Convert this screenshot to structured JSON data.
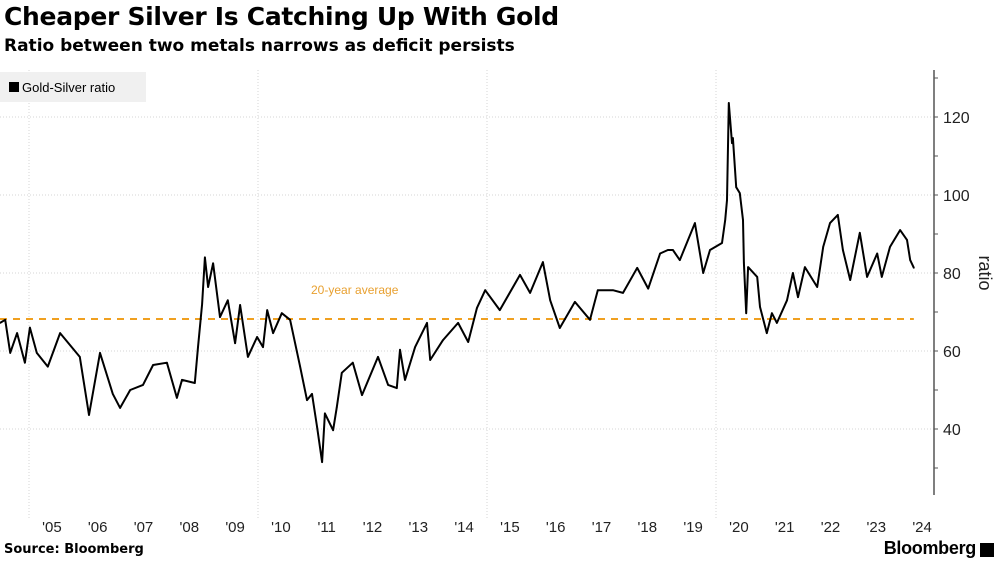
{
  "title": "Cheaper Silver Is Catching Up With Gold",
  "subtitle": "Ratio between two metals narrows as deficit persists",
  "source": "Source: Bloomberg",
  "logo": "Bloomberg",
  "chart_data": {
    "type": "line",
    "ylabel": "ratio",
    "ylim": [
      23,
      132
    ],
    "yticks": [
      40,
      60,
      80,
      100,
      120
    ],
    "ytick_labels": [
      "40",
      "60",
      "80",
      "100",
      "120"
    ],
    "xlim": [
      2004.37,
      2024.6
    ],
    "xtick_labels": [
      "'05",
      "'06",
      "'07",
      "'08",
      "'09",
      "'10",
      "'11",
      "'12",
      "'13",
      "'14",
      "'15",
      "'16",
      "'17",
      "'18",
      "'19",
      "'20",
      "'21",
      "'22",
      "'23",
      "'24"
    ],
    "grid": true,
    "legend": "top-left",
    "colors": {
      "series": "#000000",
      "average": "#f0a020",
      "average_label": "#e8a030"
    },
    "annotation": {
      "text": "20-year average",
      "value": 68.2
    },
    "series": [
      {
        "name": "Gold-Silver ratio",
        "x": [
          2004.37,
          2004.48,
          2004.59,
          2004.74,
          2004.91,
          2005.02,
          2005.17,
          2005.41,
          2005.68,
          2006.11,
          2006.31,
          2006.55,
          2006.83,
          2006.99,
          2007.21,
          2007.49,
          2007.71,
          2008.01,
          2008.23,
          2008.34,
          2008.62,
          2008.69,
          2008.78,
          2008.84,
          2008.91,
          2009.02,
          2009.17,
          2009.34,
          2009.5,
          2009.61,
          2009.78,
          2009.98,
          2010.11,
          2010.2,
          2010.33,
          2010.52,
          2010.7,
          2010.92,
          2011.07,
          2011.18,
          2011.29,
          2011.4,
          2011.46,
          2011.64,
          2011.72,
          2011.83,
          2012.07,
          2012.27,
          2012.62,
          2012.84,
          2013.03,
          2013.1,
          2013.21,
          2013.43,
          2013.69,
          2013.76,
          2014.04,
          2014.37,
          2014.59,
          2014.78,
          2014.96,
          2015.28,
          2015.72,
          2015.94,
          2016.22,
          2016.38,
          2016.59,
          2016.92,
          2017.25,
          2017.42,
          2017.75,
          2017.97,
          2018.28,
          2018.52,
          2018.78,
          2018.95,
          2019.06,
          2019.21,
          2019.54,
          2019.72,
          2019.87,
          2020.13,
          2020.2,
          2020.24,
          2020.28,
          2020.35,
          2020.37,
          2020.44,
          2020.52,
          2020.59,
          2020.61,
          2020.66,
          2020.7,
          2020.9,
          2020.96,
          2021.11,
          2021.22,
          2021.33,
          2021.55,
          2021.68,
          2021.79,
          2021.94,
          2022.21,
          2022.34,
          2022.49,
          2022.66,
          2022.77,
          2022.93,
          2023.14,
          2023.3,
          2023.52,
          2023.62,
          2023.8,
          2024.02,
          2024.17,
          2024.24,
          2024.32
        ],
        "values": [
          67.2,
          68,
          59.5,
          64.6,
          57,
          66,
          59.5,
          56,
          64.6,
          58.5,
          43.6,
          59.5,
          49,
          45.4,
          50,
          51.3,
          56.4,
          57,
          48,
          52.6,
          51.8,
          61,
          72,
          84,
          76.4,
          82.5,
          68.7,
          73,
          62,
          71.8,
          58.5,
          63.6,
          61,
          70.5,
          64.6,
          69.7,
          68,
          56,
          47.4,
          49,
          40.5,
          31.5,
          44,
          39.7,
          45.6,
          54.4,
          57,
          48.7,
          58.5,
          51.3,
          50.5,
          60.3,
          52.6,
          61,
          67.2,
          57.7,
          62.8,
          67.2,
          62.3,
          71,
          75.6,
          70.5,
          79.5,
          74.9,
          82.8,
          73,
          65.9,
          72.6,
          68,
          75.6,
          75.6,
          74.9,
          81.3,
          76,
          85,
          85.9,
          85.9,
          83.3,
          92.8,
          80,
          85.9,
          87.7,
          93.6,
          98.7,
          123.6,
          113.3,
          114.6,
          102,
          100.5,
          93.6,
          82.6,
          69.7,
          81.5,
          79,
          71.3,
          64.6,
          69.7,
          67.2,
          73,
          80,
          73.8,
          81.5,
          76.4,
          86.7,
          92.8,
          94.9,
          85.9,
          78.2,
          90.3,
          79,
          85,
          79,
          86.7,
          91,
          88.5,
          83.3,
          81.3
        ]
      }
    ]
  }
}
